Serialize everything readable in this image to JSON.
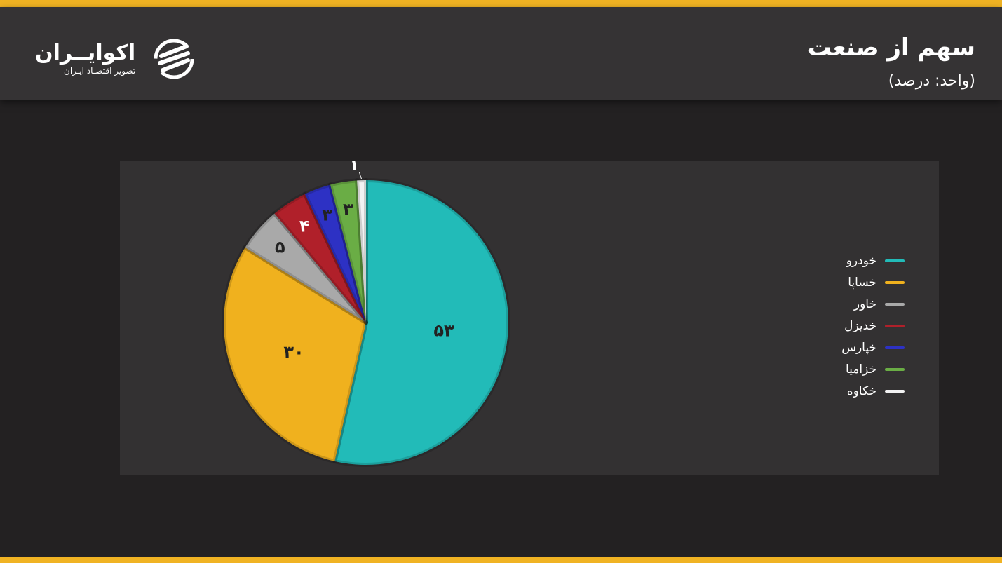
{
  "header": {
    "title": "سهم از صنعت",
    "subtitle": "(واحد: درصد)",
    "logo": {
      "name": "اکوایــران",
      "tagline": "تصویر اقتصـاد ایـران"
    }
  },
  "colors": {
    "accent": "#f0b323",
    "panel": "#333132"
  },
  "chart_data": {
    "type": "pie",
    "title": "سهم از صنعت",
    "unit": "(واحد: درصد)",
    "start_angle": "top",
    "direction": "clockwise",
    "legend_position": "right",
    "slices": [
      {
        "name": "خودرو",
        "value": 53,
        "label": "۵۳",
        "color": "#22bbb8"
      },
      {
        "name": "خساپا",
        "value": 30,
        "label": "۳۰",
        "color": "#f0b11e"
      },
      {
        "name": "خاور",
        "value": 5,
        "label": "۵",
        "color": "#a9a9a9"
      },
      {
        "name": "خدیزل",
        "value": 4,
        "label": "۴",
        "color": "#b0202a"
      },
      {
        "name": "خپارس",
        "value": 3,
        "label": "۳",
        "color": "#2d31c4"
      },
      {
        "name": "خزامیا",
        "value": 3,
        "label": "۳",
        "color": "#6aad45"
      },
      {
        "name": "خکاوه",
        "value": 1,
        "label": "۱",
        "color": "#f2f2f2"
      }
    ]
  }
}
